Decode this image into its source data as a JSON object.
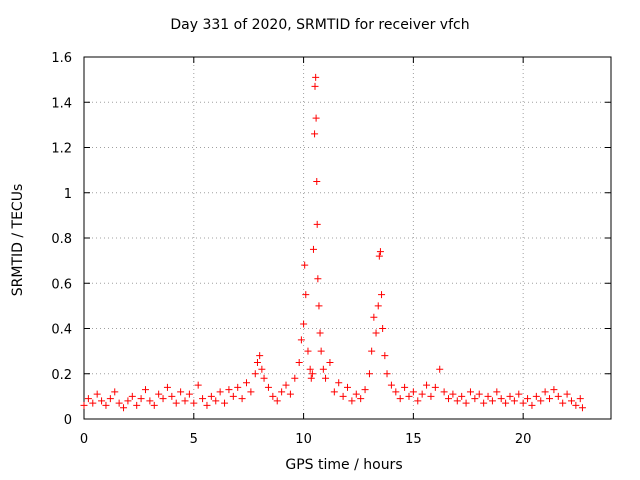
{
  "chart_data": {
    "type": "scatter",
    "title": "Day 331 of 2020, SRMTID for receiver vfch",
    "xlabel": "GPS time / hours",
    "ylabel": "SRMTID / TECUs",
    "xlim": [
      0,
      24
    ],
    "ylim": [
      0,
      1.6
    ],
    "grid": true,
    "marker": "+",
    "series_color": "#ff0000",
    "xticks": [
      {
        "value": 0,
        "label": "0"
      },
      {
        "value": 5,
        "label": "5"
      },
      {
        "value": 10,
        "label": "10"
      },
      {
        "value": 15,
        "label": "15"
      },
      {
        "value": 20,
        "label": "20"
      }
    ],
    "yticks": [
      {
        "value": 0,
        "label": "0"
      },
      {
        "value": 0.2,
        "label": "0.2"
      },
      {
        "value": 0.4,
        "label": "0.4"
      },
      {
        "value": 0.6,
        "label": "0.6"
      },
      {
        "value": 0.8,
        "label": "0.8"
      },
      {
        "value": 1.0,
        "label": "1"
      },
      {
        "value": 1.2,
        "label": "1.2"
      },
      {
        "value": 1.4,
        "label": "1.4"
      },
      {
        "value": 1.6,
        "label": "1.6"
      }
    ],
    "series": [
      {
        "name": "SRMTID",
        "points": [
          [
            0.0,
            0.06
          ],
          [
            0.2,
            0.09
          ],
          [
            0.4,
            0.07
          ],
          [
            0.6,
            0.11
          ],
          [
            0.8,
            0.08
          ],
          [
            1.0,
            0.06
          ],
          [
            1.2,
            0.09
          ],
          [
            1.4,
            0.12
          ],
          [
            1.6,
            0.07
          ],
          [
            1.8,
            0.05
          ],
          [
            2.0,
            0.08
          ],
          [
            2.2,
            0.1
          ],
          [
            2.4,
            0.06
          ],
          [
            2.6,
            0.09
          ],
          [
            2.8,
            0.13
          ],
          [
            3.0,
            0.08
          ],
          [
            3.2,
            0.06
          ],
          [
            3.4,
            0.11
          ],
          [
            3.6,
            0.09
          ],
          [
            3.8,
            0.14
          ],
          [
            4.0,
            0.1
          ],
          [
            4.2,
            0.07
          ],
          [
            4.4,
            0.12
          ],
          [
            4.6,
            0.08
          ],
          [
            4.8,
            0.11
          ],
          [
            5.0,
            0.07
          ],
          [
            5.2,
            0.15
          ],
          [
            5.4,
            0.09
          ],
          [
            5.6,
            0.06
          ],
          [
            5.8,
            0.1
          ],
          [
            6.0,
            0.08
          ],
          [
            6.2,
            0.12
          ],
          [
            6.4,
            0.07
          ],
          [
            6.6,
            0.13
          ],
          [
            6.8,
            0.1
          ],
          [
            7.0,
            0.14
          ],
          [
            7.2,
            0.09
          ],
          [
            7.4,
            0.16
          ],
          [
            7.6,
            0.12
          ],
          [
            7.8,
            0.2
          ],
          [
            7.9,
            0.25
          ],
          [
            8.0,
            0.28
          ],
          [
            8.1,
            0.22
          ],
          [
            8.2,
            0.18
          ],
          [
            8.4,
            0.14
          ],
          [
            8.6,
            0.1
          ],
          [
            8.8,
            0.08
          ],
          [
            9.0,
            0.12
          ],
          [
            9.2,
            0.15
          ],
          [
            9.4,
            0.11
          ],
          [
            9.6,
            0.18
          ],
          [
            9.8,
            0.25
          ],
          [
            9.9,
            0.35
          ],
          [
            10.0,
            0.42
          ],
          [
            10.05,
            0.68
          ],
          [
            10.1,
            0.55
          ],
          [
            10.2,
            0.3
          ],
          [
            10.3,
            0.22
          ],
          [
            10.35,
            0.18
          ],
          [
            10.4,
            0.2
          ],
          [
            10.45,
            0.75
          ],
          [
            10.5,
            1.26
          ],
          [
            10.52,
            1.47
          ],
          [
            10.55,
            1.51
          ],
          [
            10.57,
            1.33
          ],
          [
            10.6,
            1.05
          ],
          [
            10.62,
            0.86
          ],
          [
            10.65,
            0.62
          ],
          [
            10.7,
            0.5
          ],
          [
            10.75,
            0.38
          ],
          [
            10.8,
            0.3
          ],
          [
            10.9,
            0.22
          ],
          [
            11.0,
            0.18
          ],
          [
            11.2,
            0.25
          ],
          [
            11.4,
            0.12
          ],
          [
            11.6,
            0.16
          ],
          [
            11.8,
            0.1
          ],
          [
            12.0,
            0.14
          ],
          [
            12.2,
            0.08
          ],
          [
            12.4,
            0.11
          ],
          [
            12.6,
            0.09
          ],
          [
            12.8,
            0.13
          ],
          [
            13.0,
            0.2
          ],
          [
            13.1,
            0.3
          ],
          [
            13.2,
            0.45
          ],
          [
            13.3,
            0.38
          ],
          [
            13.4,
            0.5
          ],
          [
            13.45,
            0.72
          ],
          [
            13.5,
            0.74
          ],
          [
            13.55,
            0.55
          ],
          [
            13.6,
            0.4
          ],
          [
            13.7,
            0.28
          ],
          [
            13.8,
            0.2
          ],
          [
            14.0,
            0.15
          ],
          [
            14.2,
            0.12
          ],
          [
            14.4,
            0.09
          ],
          [
            14.6,
            0.14
          ],
          [
            14.8,
            0.1
          ],
          [
            15.0,
            0.12
          ],
          [
            15.2,
            0.08
          ],
          [
            15.4,
            0.11
          ],
          [
            15.6,
            0.15
          ],
          [
            15.8,
            0.1
          ],
          [
            16.0,
            0.14
          ],
          [
            16.2,
            0.22
          ],
          [
            16.4,
            0.12
          ],
          [
            16.6,
            0.09
          ],
          [
            16.8,
            0.11
          ],
          [
            17.0,
            0.08
          ],
          [
            17.2,
            0.1
          ],
          [
            17.4,
            0.07
          ],
          [
            17.6,
            0.12
          ],
          [
            17.8,
            0.09
          ],
          [
            18.0,
            0.11
          ],
          [
            18.2,
            0.07
          ],
          [
            18.4,
            0.1
          ],
          [
            18.6,
            0.08
          ],
          [
            18.8,
            0.12
          ],
          [
            19.0,
            0.09
          ],
          [
            19.2,
            0.07
          ],
          [
            19.4,
            0.1
          ],
          [
            19.6,
            0.08
          ],
          [
            19.8,
            0.11
          ],
          [
            20.0,
            0.07
          ],
          [
            20.2,
            0.09
          ],
          [
            20.4,
            0.06
          ],
          [
            20.6,
            0.1
          ],
          [
            20.8,
            0.08
          ],
          [
            21.0,
            0.12
          ],
          [
            21.2,
            0.09
          ],
          [
            21.4,
            0.13
          ],
          [
            21.6,
            0.1
          ],
          [
            21.8,
            0.07
          ],
          [
            22.0,
            0.11
          ],
          [
            22.2,
            0.08
          ],
          [
            22.4,
            0.06
          ],
          [
            22.6,
            0.09
          ],
          [
            22.7,
            0.05
          ]
        ]
      }
    ]
  }
}
